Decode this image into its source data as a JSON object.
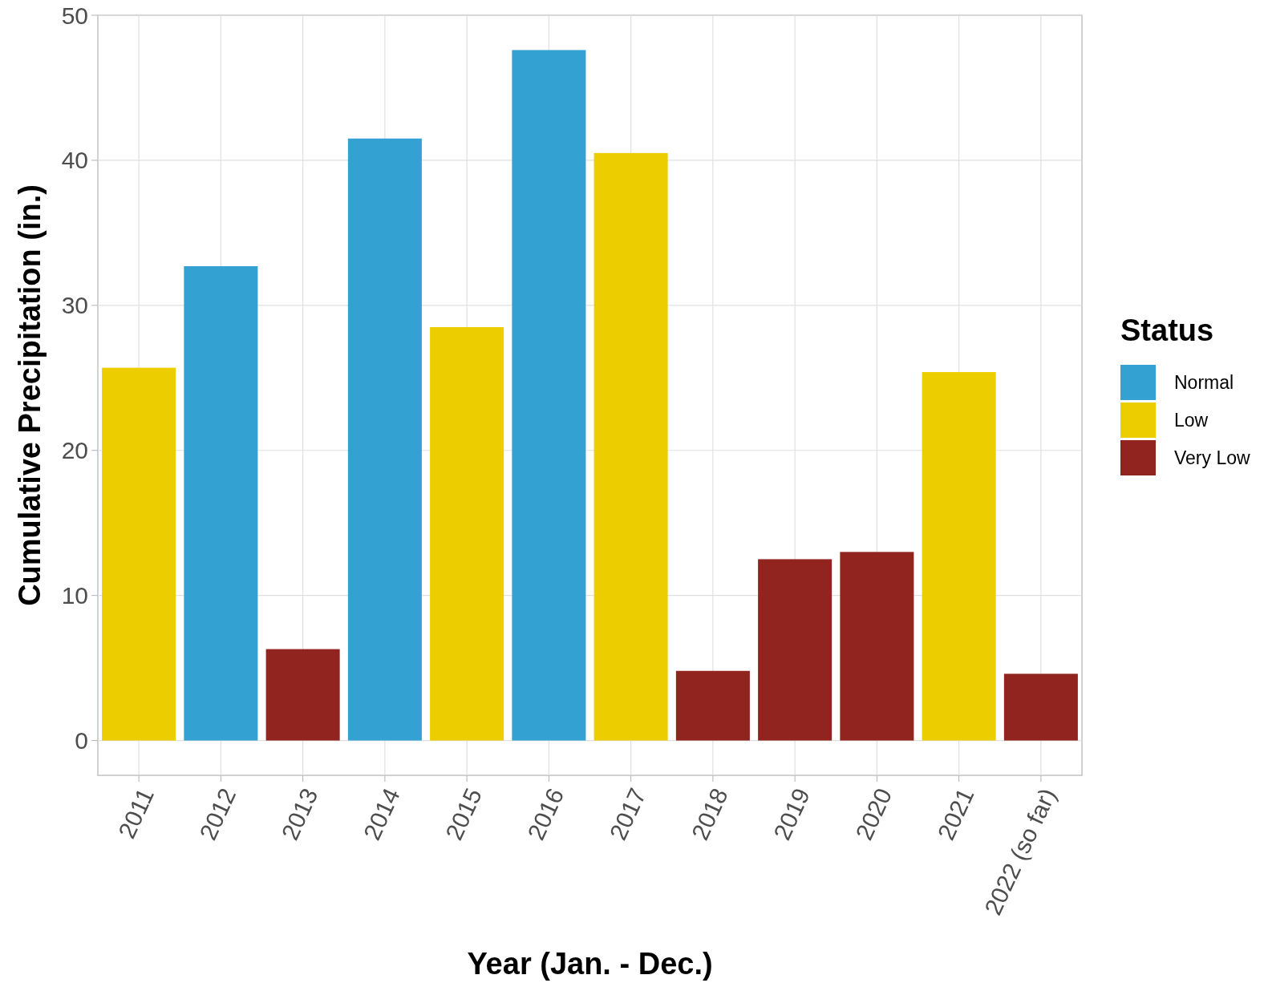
{
  "chart_data": {
    "type": "bar",
    "xlabel": "Year (Jan. - Dec.)",
    "ylabel": "Cumulative Precipitation (in.)",
    "legend_title": "Status",
    "categories": [
      "2011",
      "2012",
      "2013",
      "2014",
      "2015",
      "2016",
      "2017",
      "2018",
      "2019",
      "2020",
      "2021",
      "2022 (so far)"
    ],
    "series": [
      {
        "name": "Normal",
        "color": "#33a2d3",
        "values": [
          null,
          32.7,
          null,
          41.5,
          null,
          47.6,
          null,
          null,
          null,
          null,
          null,
          null
        ]
      },
      {
        "name": "Low",
        "color": "#eccd00",
        "values": [
          25.7,
          null,
          null,
          null,
          28.5,
          null,
          40.5,
          null,
          null,
          null,
          25.4,
          null
        ]
      },
      {
        "name": "Very Low",
        "color": "#91241f",
        "values": [
          null,
          null,
          6.3,
          null,
          null,
          null,
          null,
          4.8,
          12.5,
          13.0,
          null,
          4.6
        ]
      }
    ],
    "ylim": [
      -2.4,
      50
    ],
    "yticks": [
      0,
      10,
      20,
      30,
      40,
      50
    ],
    "grid": true,
    "legend": "right"
  }
}
